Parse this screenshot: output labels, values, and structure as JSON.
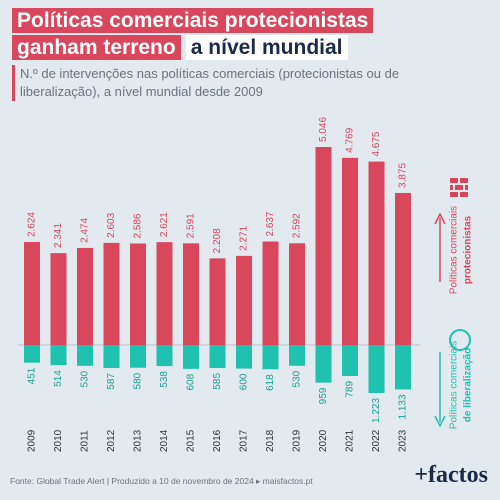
{
  "chart_data": {
    "type": "diverging-bar",
    "title_parts": [
      "Políticas comerciais protecionistas",
      "ganham terreno",
      "a nível mundial"
    ],
    "subtitle": "N.º de intervenções nas políticas comerciais (protecionistas ou de liberalização), a nível mundial desde 2009",
    "categories": [
      "2009",
      "2010",
      "2011",
      "2012",
      "2013",
      "2014",
      "2015",
      "2016",
      "2017",
      "2018",
      "2019",
      "2020",
      "2021",
      "2022",
      "2023"
    ],
    "series": [
      {
        "color": "#d9475c",
        "direction": "up",
        "values": [
          2624,
          2341,
          2474,
          2603,
          2586,
          2621,
          2591,
          2208,
          2271,
          2637,
          2592,
          5046,
          4769,
          4675,
          3875
        ],
        "value_labels": [
          "2.624",
          "2.341",
          "2.474",
          "2.603",
          "2.586",
          "2.621",
          "2.591",
          "2.208",
          "2.271",
          "2.637",
          "2.592",
          "5.046",
          "4.769",
          "4.675",
          "3.875"
        ],
        "legend_lines": [
          "Políticas comerciais",
          "protecionistas"
        ]
      },
      {
        "color": "#1fc2ae",
        "direction": "down",
        "values": [
          451,
          514,
          530,
          587,
          580,
          538,
          608,
          585,
          600,
          618,
          530,
          959,
          789,
          1223,
          1133
        ],
        "value_labels": [
          "451",
          "514",
          "530",
          "587",
          "580",
          "538",
          "608",
          "585",
          "600",
          "618",
          "530",
          "959",
          "789",
          "1.223",
          "1.133"
        ],
        "legend_lines": [
          "Políticas comerciais",
          "de liberalização"
        ]
      }
    ],
    "source": "Fonte: Global Trade Alert | Produzido a 10 de novembro de 2024 ▸ maisfactos.pt",
    "logo": "+factos"
  }
}
